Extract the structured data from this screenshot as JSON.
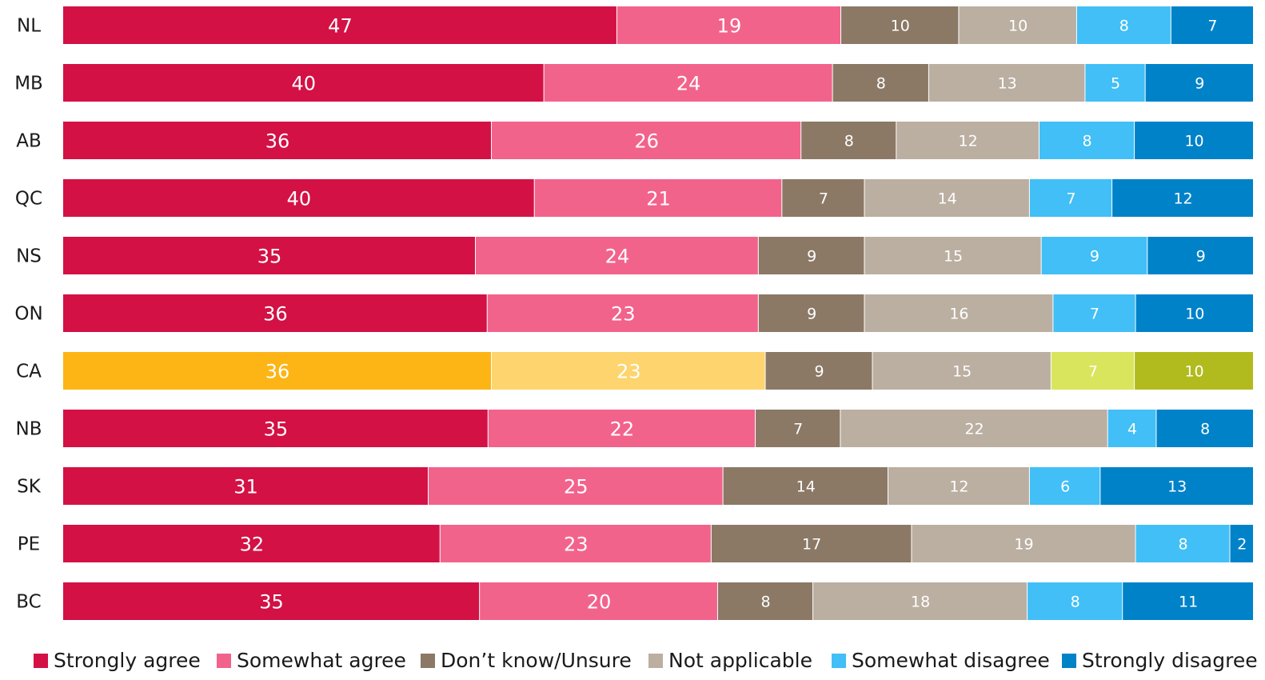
{
  "chart_data": {
    "type": "bar",
    "orientation": "horizontal",
    "stacked": true,
    "title": "",
    "xlabel": "",
    "ylabel": "",
    "xlim": [
      0,
      100
    ],
    "grid": false,
    "legend_position": "bottom",
    "categories": [
      "NL",
      "MB",
      "AB",
      "QC",
      "NS",
      "ON",
      "CA",
      "NB",
      "SK",
      "PE",
      "BC"
    ],
    "series": [
      {
        "name": "Strongly agree",
        "color": "#d31145",
        "values": [
          47,
          40,
          36,
          40,
          35,
          36,
          36,
          35,
          31,
          32,
          35
        ]
      },
      {
        "name": "Somewhat agree",
        "color": "#f2638c",
        "values": [
          19,
          24,
          26,
          21,
          24,
          23,
          23,
          22,
          25,
          23,
          20
        ]
      },
      {
        "name": "Don’t know/Unsure",
        "color": "#8b7966",
        "values": [
          10,
          8,
          8,
          7,
          9,
          9,
          9,
          7,
          14,
          17,
          8
        ]
      },
      {
        "name": "Not applicable",
        "color": "#bbafa2",
        "values": [
          10,
          13,
          12,
          14,
          15,
          16,
          15,
          22,
          12,
          19,
          18
        ]
      },
      {
        "name": "Somewhat disagree",
        "color": "#41bff6",
        "values": [
          8,
          5,
          8,
          7,
          9,
          7,
          7,
          4,
          6,
          8,
          8
        ]
      },
      {
        "name": "Strongly disagree",
        "color": "#0082c9",
        "values": [
          7,
          9,
          10,
          12,
          9,
          10,
          10,
          8,
          13,
          2,
          11
        ]
      }
    ],
    "highlight": {
      "category": "CA",
      "colors": [
        "#fcb515",
        "#fdd46e",
        "#8b7966",
        "#bbafa2",
        "#d9e55c",
        "#b2bb1e"
      ]
    }
  }
}
